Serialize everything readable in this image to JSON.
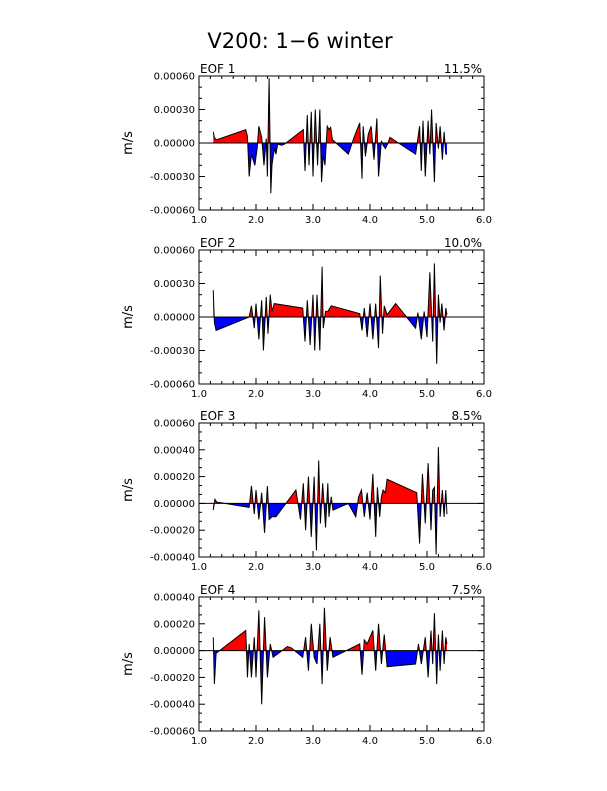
{
  "title": "V200: 1−6 winter",
  "colors": {
    "positive": "#ff0000",
    "negative": "#0000ff",
    "line": "#000000",
    "background": "#ffffff"
  },
  "chart_data": [
    {
      "type": "area",
      "panel_label": "EOF 1",
      "variance": "11.5%",
      "ylabel": "m/s",
      "xlim": [
        1.0,
        6.0
      ],
      "ylim": [
        -0.0006,
        0.0006
      ],
      "xticks": [
        "1.0",
        "2.0",
        "3.0",
        "4.0",
        "5.0",
        "6.0"
      ],
      "yticks": [
        "0.00060",
        "0.00030",
        "0.00000",
        "-0.00030",
        "-0.00060"
      ],
      "x": [
        1.25,
        1.27,
        1.3,
        1.32,
        1.82,
        1.85,
        1.88,
        1.92,
        1.98,
        2.02,
        2.05,
        2.1,
        2.14,
        2.18,
        2.2,
        2.23,
        2.26,
        2.28,
        2.32,
        2.35,
        2.38,
        2.45,
        2.5,
        2.83,
        2.86,
        2.9,
        2.93,
        2.97,
        3.0,
        3.04,
        3.08,
        3.12,
        3.15,
        3.18,
        3.21,
        3.25,
        3.28,
        3.31,
        3.34,
        3.62,
        3.72,
        3.82,
        3.86,
        3.88,
        3.92,
        3.97,
        4.02,
        4.07,
        4.12,
        4.15,
        4.2,
        4.23,
        4.27,
        4.3,
        4.35,
        4.8,
        4.87,
        4.9,
        4.93,
        4.97,
        5.02,
        5.05,
        5.08,
        5.13,
        5.16,
        5.2,
        5.23,
        5.27,
        5.3,
        5.33,
        5.35
      ],
      "y": [
        0.0001,
        5e-05,
        3e-05,
        3e-05,
        0.00012,
        6e-05,
        -0.0003,
        -0.0001,
        -0.0002,
        -5e-05,
        0.00015,
        5e-05,
        -0.0002,
        4e-05,
        -0.0003,
        0.00058,
        -0.00045,
        -0.0002,
        -5e-05,
        -0.0001,
        -1e-05,
        -2e-05,
        -1e-05,
        0.00012,
        -0.00025,
        0.00025,
        -0.0002,
        0.00028,
        -0.0003,
        0.0003,
        -0.0002,
        0.0003,
        -0.00035,
        -0.0001,
        -0.0002,
        0.00015,
        0.00012,
        0.00014,
        3e-05,
        -0.0001,
        5e-05,
        0.00018,
        -0.00032,
        0.00015,
        -0.00012,
        8e-05,
        0.00015,
        -0.00015,
        0.00022,
        -0.0003,
        2e-05,
        -2e-05,
        -5e-05,
        -2e-05,
        5e-05,
        -0.0001,
        0.00015,
        -0.00025,
        0.0002,
        -0.0003,
        0.0002,
        -0.0001,
        0.0003,
        -0.00035,
        0.00018,
        -5e-05,
        0.00015,
        -0.00015,
        0.0001,
        -0.0001,
        -0.0001
      ]
    },
    {
      "type": "area",
      "panel_label": "EOF 2",
      "variance": "10.0%",
      "ylabel": "m/s",
      "xlim": [
        1.0,
        6.0
      ],
      "ylim": [
        -0.0006,
        0.0006
      ],
      "xticks": [
        "1.0",
        "2.0",
        "3.0",
        "4.0",
        "5.0",
        "6.0"
      ],
      "yticks": [
        "0.00060",
        "0.00030",
        "0.00000",
        "-0.00030",
        "-0.00060"
      ],
      "x": [
        1.25,
        1.27,
        1.3,
        1.88,
        1.92,
        1.97,
        2.0,
        2.05,
        2.1,
        2.13,
        2.18,
        2.21,
        2.25,
        2.28,
        2.32,
        2.82,
        2.86,
        2.9,
        2.95,
        3.0,
        3.03,
        3.07,
        3.12,
        3.16,
        3.18,
        3.22,
        3.26,
        3.32,
        3.82,
        3.86,
        3.9,
        3.95,
        4.0,
        4.05,
        4.1,
        4.15,
        4.18,
        4.22,
        4.25,
        4.3,
        4.45,
        4.8,
        4.84,
        4.9,
        4.95,
        5.0,
        5.05,
        5.1,
        5.13,
        5.17,
        5.2,
        5.23,
        5.26,
        5.3,
        5.33,
        5.35
      ],
      "y": [
        0.00024,
        -5e-05,
        -0.00012,
        0,
        0.0001,
        -0.0001,
        0.00012,
        -0.0002,
        0.00015,
        -0.0003,
        0.00018,
        -0.00015,
        0.0002,
        5e-05,
        0.00012,
        8e-05,
        -0.00022,
        0.00015,
        -0.00025,
        0.0002,
        -0.0003,
        0.0002,
        -0.0003,
        0.00045,
        -0.0001,
        5e-05,
        5e-05,
        0.0001,
        3e-05,
        -0.00012,
        8e-05,
        -0.00018,
        0.00012,
        -0.0002,
        0.00012,
        -0.00028,
        0.00037,
        -0.00015,
        0.0001,
        2e-05,
        0.00012,
        -0.0001,
        4e-05,
        -0.0002,
        5e-05,
        -0.00018,
        0.0004,
        -0.00022,
        0.00048,
        -0.00042,
        0.0002,
        -5e-05,
        0.00012,
        -0.00012,
        8e-05,
        2e-05
      ]
    },
    {
      "type": "area",
      "panel_label": "EOF 3",
      "variance": "8.5%",
      "ylabel": "m/s",
      "xlim": [
        1.0,
        6.0
      ],
      "ylim": [
        -0.0004,
        0.0006
      ],
      "xticks": [
        "1.0",
        "2.0",
        "3.0",
        "4.0",
        "5.0",
        "6.0"
      ],
      "yticks": [
        "0.00060",
        "0.00040",
        "0.00020",
        "0.00000",
        "-0.00020",
        "-0.00040"
      ],
      "x": [
        1.25,
        1.28,
        1.31,
        1.88,
        1.92,
        1.97,
        2.0,
        2.05,
        2.1,
        2.15,
        2.2,
        2.23,
        2.28,
        2.35,
        2.7,
        2.78,
        2.83,
        2.87,
        2.92,
        2.97,
        3.02,
        3.06,
        3.1,
        3.13,
        3.17,
        3.22,
        3.26,
        3.28,
        3.32,
        3.35,
        3.62,
        3.75,
        3.8,
        3.85,
        3.9,
        3.95,
        4.0,
        4.05,
        4.1,
        4.13,
        4.17,
        4.2,
        4.23,
        4.27,
        4.3,
        4.82,
        4.87,
        4.92,
        4.97,
        5.02,
        5.07,
        5.1,
        5.13,
        5.16,
        5.2,
        5.23,
        5.27,
        5.3,
        5.33,
        5.35
      ],
      "y": [
        -5e-05,
        3e-05,
        1e-05,
        -3e-05,
        0.00013,
        -8e-05,
        0.0001,
        -0.00012,
        8e-05,
        -0.00022,
        0.00013,
        -0.00012,
        -0.0001,
        -0.0001,
        0.0001,
        -0.00012,
        0.00015,
        -0.0002,
        0.0002,
        -0.00025,
        0.0002,
        -0.00035,
        0.00032,
        -0.00015,
        0.00015,
        -0.00018,
        0.00015,
        -0.0001,
        5e-05,
        -5e-05,
        0,
        -0.0001,
        5e-05,
        0.0001,
        -0.0001,
        8e-05,
        -0.00012,
        0.00022,
        -0.00025,
        0.00012,
        -0.0001,
        5e-05,
        0.0001,
        8e-05,
        0.00018,
        8e-05,
        -0.0003,
        0.00022,
        -0.00015,
        0.0003,
        -0.0002,
        0.0001,
        0.00012,
        -0.00038,
        0.00042,
        -0.0001,
        0.0001,
        -0.0001,
        0.0001,
        -8e-05
      ]
    },
    {
      "type": "area",
      "panel_label": "EOF 4",
      "variance": "7.5%",
      "ylabel": "m/s",
      "xlim": [
        1.0,
        6.0
      ],
      "ylim": [
        -0.0006,
        0.0004
      ],
      "xticks": [
        "1.0",
        "2.0",
        "3.0",
        "4.0",
        "5.0",
        "6.0"
      ],
      "yticks": [
        "0.00040",
        "0.00020",
        "0.00000",
        "-0.00020",
        "-0.00040",
        "-0.00060"
      ],
      "x": [
        1.25,
        1.27,
        1.3,
        1.82,
        1.85,
        1.88,
        1.92,
        1.97,
        2.0,
        2.05,
        2.1,
        2.15,
        2.2,
        2.25,
        2.3,
        2.55,
        2.62,
        2.82,
        2.87,
        2.92,
        2.97,
        3.02,
        3.07,
        3.12,
        3.16,
        3.2,
        3.25,
        3.3,
        3.35,
        3.82,
        3.86,
        3.9,
        3.95,
        4.0,
        4.05,
        4.1,
        4.15,
        4.2,
        4.25,
        4.3,
        4.8,
        4.85,
        4.9,
        4.97,
        5.02,
        5.07,
        5.1,
        5.13,
        5.17,
        5.2,
        5.23,
        5.27,
        5.3,
        5.33,
        5.35
      ],
      "y": [
        0.0001,
        -0.00025,
        -2e-05,
        0.00015,
        -0.0002,
        5e-05,
        -0.0002,
        0.0001,
        -0.0002,
        0.0003,
        -0.0004,
        0.00025,
        -0.0002,
        5e-05,
        -5e-05,
        3e-05,
        2e-05,
        -5e-05,
        0.0001,
        -0.00015,
        0.0002,
        -5e-05,
        -0.0001,
        0.0002,
        -0.00025,
        0.00032,
        -0.00015,
        0.0001,
        -5e-05,
        5e-05,
        -0.00018,
        8e-05,
        5e-05,
        0.0001,
        0.00015,
        -0.00015,
        0.0002,
        -0.0001,
        0.00012,
        -0.00012,
        -0.0001,
        5e-05,
        -0.0001,
        0.0001,
        -0.0002,
        0.00015,
        -0.0001,
        0.00028,
        -0.00025,
        0.00012,
        -0.00015,
        0.00015,
        -0.0001,
        0.0001,
        5e-05
      ]
    }
  ]
}
